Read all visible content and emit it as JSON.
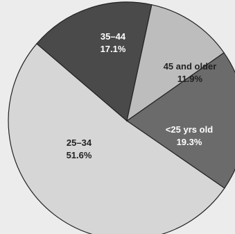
{
  "chart_data": {
    "type": "pie",
    "slices": [
      {
        "category": "<25 yrs old",
        "value_label": "19.3%",
        "value": 19.3,
        "color": "#6b6b6b",
        "text_color": "#ffffff"
      },
      {
        "category": "25–34",
        "value_label": "51.6%",
        "value": 51.6,
        "color": "#d6d6d6",
        "text_color": "#222222"
      },
      {
        "category": "35–44",
        "value_label": "17.1%",
        "value": 17.1,
        "color": "#4a4a4a",
        "text_color": "#ffffff"
      },
      {
        "category": "45 and older",
        "value_label": "11.9%",
        "value": 11.9,
        "color": "#bdbdbd",
        "text_color": "#222222"
      }
    ],
    "legend": "none"
  }
}
